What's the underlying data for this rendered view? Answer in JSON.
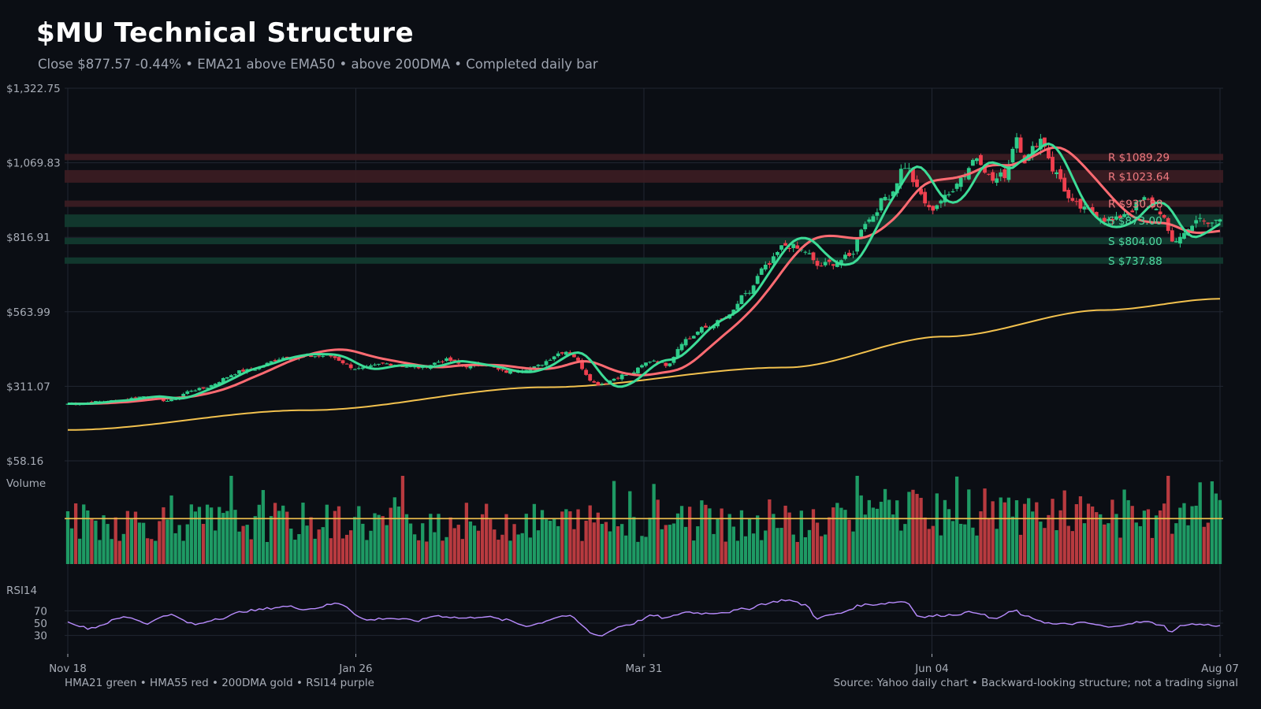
{
  "header": {
    "title": "$MU Technical Structure",
    "subtitle": "Close $877.57  -0.44%  •  EMA21 above EMA50 • above 200DMA  •  Completed daily bar"
  },
  "panels": {
    "volume_label": "Volume",
    "rsi_label": "RSI14"
  },
  "footer": {
    "legend_text": "HMA21 green • HMA55 red • 200DMA gold  •  RSI14 purple",
    "source_text": "Source: Yahoo daily chart • Backward-looking structure; not a trading signal"
  },
  "colors": {
    "background": "#0b0e14",
    "grid": "#222732",
    "up": "#2ecc8a",
    "down": "#f0404f",
    "hma21": "#3ddc97",
    "hma55": "#ff6b72",
    "dma200": "#f2c14e",
    "rsi": "#b98cff",
    "volume_up": "#1e9a64",
    "volume_down": "#b83a3f",
    "volume_avg": "#f2c14e",
    "resistance_zone": "#3a1c22",
    "support_zone": "#123a2e"
  },
  "chart_data": {
    "type": "candlestick",
    "x_ticks": [
      "Nov 18",
      "Jan 26",
      "Mar 31",
      "Jun 04",
      "Aug 07"
    ],
    "y_ticks": [
      "$1,322.75",
      "$1,069.83",
      "$816.91",
      "$563.99",
      "$311.07",
      "$58.16"
    ],
    "ylim": [
      58.16,
      1322.75
    ],
    "rsi_ticks": [
      "70",
      "50",
      "30"
    ],
    "rsi_range": [
      0,
      100
    ],
    "levels": [
      {
        "kind": "R",
        "label": "R $1089.29",
        "value": 1089.29
      },
      {
        "kind": "R",
        "label": "R $1023.64",
        "value": 1023.64
      },
      {
        "kind": "R",
        "label": "R $930.88",
        "value": 930.88
      },
      {
        "kind": "S",
        "label": "S $873.00",
        "value": 873.0
      },
      {
        "kind": "S",
        "label": "S $804.00",
        "value": 804.0
      },
      {
        "kind": "S",
        "label": "S $737.88",
        "value": 737.88
      }
    ],
    "close_anchors": [
      [
        0,
        252
      ],
      [
        12,
        262
      ],
      [
        20,
        278
      ],
      [
        25,
        262
      ],
      [
        32,
        300
      ],
      [
        45,
        365
      ],
      [
        55,
        410
      ],
      [
        65,
        415
      ],
      [
        73,
        370
      ],
      [
        80,
        388
      ],
      [
        88,
        375
      ],
      [
        95,
        400
      ],
      [
        100,
        380
      ],
      [
        104,
        385
      ],
      [
        110,
        360
      ],
      [
        116,
        373
      ],
      [
        125,
        430
      ],
      [
        133,
        318
      ],
      [
        140,
        350
      ],
      [
        147,
        400
      ],
      [
        150,
        385
      ],
      [
        155,
        470
      ],
      [
        160,
        510
      ],
      [
        165,
        540
      ],
      [
        170,
        620
      ],
      [
        175,
        715
      ],
      [
        180,
        790
      ],
      [
        185,
        770
      ],
      [
        188,
        720
      ],
      [
        192,
        730
      ],
      [
        196,
        750
      ],
      [
        200,
        870
      ],
      [
        206,
        960
      ],
      [
        210,
        1060
      ],
      [
        214,
        960
      ],
      [
        216,
        910
      ],
      [
        220,
        950
      ],
      [
        224,
        1020
      ],
      [
        228,
        1090
      ],
      [
        232,
        1010
      ],
      [
        235,
        1030
      ],
      [
        238,
        1160
      ],
      [
        240,
        1080
      ],
      [
        244,
        1150
      ],
      [
        248,
        1030
      ],
      [
        252,
        930
      ],
      [
        256,
        905
      ],
      [
        262,
        870
      ],
      [
        266,
        905
      ],
      [
        270,
        945
      ],
      [
        274,
        905
      ],
      [
        277,
        800
      ],
      [
        280,
        830
      ],
      [
        283,
        878
      ],
      [
        286,
        862
      ],
      [
        289,
        877.57
      ]
    ],
    "dma200_anchors": [
      [
        0,
        163
      ],
      [
        60,
        230
      ],
      [
        120,
        308
      ],
      [
        180,
        375
      ],
      [
        220,
        480
      ],
      [
        260,
        570
      ],
      [
        289,
        608
      ]
    ],
    "rsi_anchors": [
      [
        0,
        52
      ],
      [
        5,
        42
      ],
      [
        15,
        60
      ],
      [
        20,
        50
      ],
      [
        25,
        64
      ],
      [
        32,
        48
      ],
      [
        38,
        58
      ],
      [
        45,
        70
      ],
      [
        55,
        77
      ],
      [
        60,
        73
      ],
      [
        68,
        82
      ],
      [
        75,
        55
      ],
      [
        80,
        58
      ],
      [
        88,
        54
      ],
      [
        92,
        62
      ],
      [
        100,
        58
      ],
      [
        104,
        61
      ],
      [
        110,
        55
      ],
      [
        115,
        46
      ],
      [
        125,
        62
      ],
      [
        133,
        30
      ],
      [
        140,
        47
      ],
      [
        147,
        62
      ],
      [
        150,
        58
      ],
      [
        155,
        68
      ],
      [
        160,
        66
      ],
      [
        165,
        68
      ],
      [
        170,
        73
      ],
      [
        175,
        82
      ],
      [
        180,
        88
      ],
      [
        185,
        80
      ],
      [
        188,
        58
      ],
      [
        192,
        64
      ],
      [
        200,
        80
      ],
      [
        210,
        85
      ],
      [
        214,
        60
      ],
      [
        220,
        63
      ],
      [
        228,
        68
      ],
      [
        232,
        57
      ],
      [
        238,
        70
      ],
      [
        240,
        60
      ],
      [
        248,
        48
      ],
      [
        255,
        50
      ],
      [
        262,
        43
      ],
      [
        266,
        50
      ],
      [
        270,
        52
      ],
      [
        274,
        48
      ],
      [
        277,
        36
      ],
      [
        280,
        48
      ],
      [
        283,
        48
      ],
      [
        286,
        47
      ],
      [
        289,
        46
      ]
    ],
    "volume_avg": 27.8,
    "volume_max": 54
  }
}
